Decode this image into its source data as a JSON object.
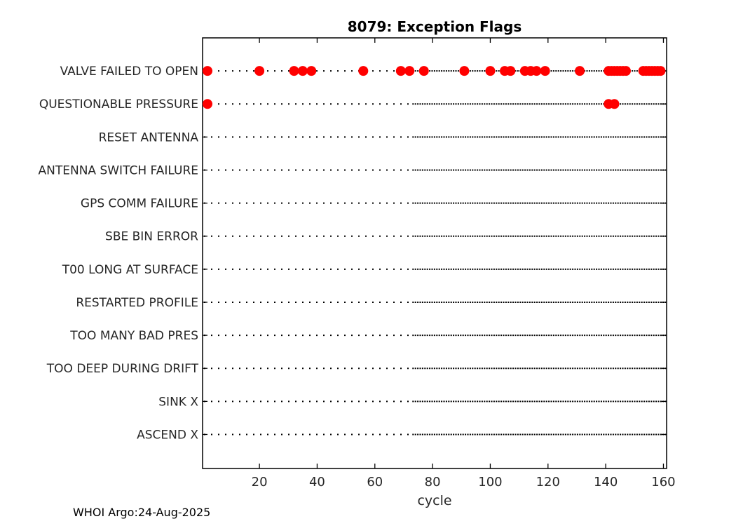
{
  "chart_data": {
    "type": "scatter",
    "title": "8079: Exception Flags",
    "xlabel": "cycle",
    "categories": [
      "VALVE FAILED TO OPEN",
      "QUESTIONABLE PRESSURE",
      "RESET ANTENNA",
      "ANTENNA SWITCH FAILURE",
      "GPS COMM FAILURE",
      "SBE BIN ERROR",
      "T00 LONG AT SURFACE",
      "RESTARTED PROFILE",
      "TOO MANY BAD PRES",
      "TOO DEEP DURING DRIFT",
      "SINK X",
      "ASCEND X"
    ],
    "xticks": [
      20,
      40,
      60,
      80,
      100,
      120,
      140,
      160
    ],
    "xlim": [
      0.3,
      161.1
    ],
    "grid": {
      "style": "dotted",
      "color": "#000000",
      "dense_from_cycle": 73
    },
    "marker": {
      "shape": "circle",
      "color": "#ff0000"
    },
    "axis_color": "#000000",
    "text_color": "#262626",
    "series": [
      {
        "name": "VALVE FAILED TO OPEN",
        "cycles": [
          2,
          20,
          32,
          35,
          38,
          56,
          69,
          72,
          77,
          91,
          100,
          105,
          107,
          112,
          114,
          116,
          119,
          131,
          141,
          142,
          143,
          144,
          145,
          146,
          147,
          153,
          154,
          155,
          156,
          157,
          158,
          159
        ]
      },
      {
        "name": "QUESTIONABLE PRESSURE",
        "cycles": [
          2,
          141,
          143
        ]
      }
    ]
  },
  "footer": {
    "text": "WHOI Argo:24-Aug-2025"
  }
}
